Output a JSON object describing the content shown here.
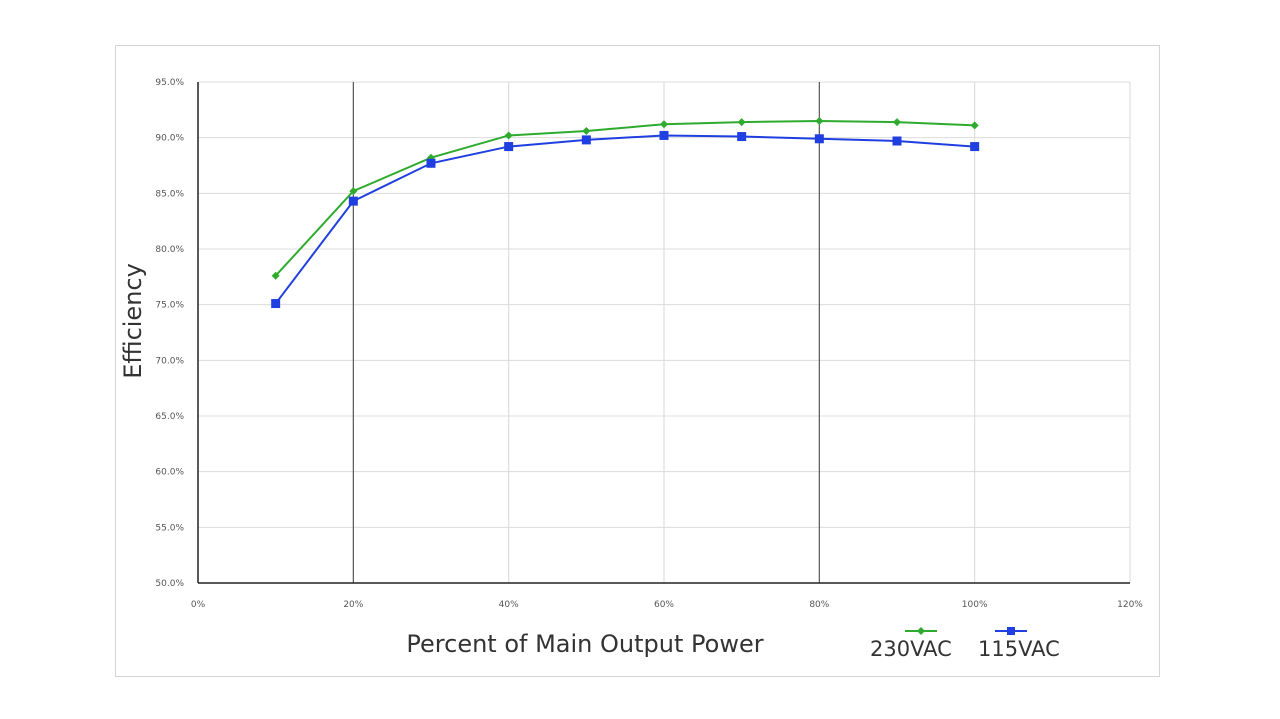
{
  "chart_data": {
    "type": "line",
    "xlabel": "Percent of Main Output Power",
    "ylabel": "Efficiency",
    "xlim": [
      0,
      120
    ],
    "ylim": [
      50,
      95
    ],
    "x_ticks": [
      0,
      20,
      40,
      60,
      80,
      100,
      120
    ],
    "x_tick_labels": [
      "0%",
      "20%",
      "40%",
      "60%",
      "80%",
      "100%",
      "120%"
    ],
    "y_ticks": [
      50,
      55,
      60,
      65,
      70,
      75,
      80,
      85,
      90,
      95
    ],
    "y_tick_labels": [
      "50.0%",
      "55.0%",
      "60.0%",
      "65.0%",
      "70.0%",
      "75.0%",
      "80.0%",
      "85.0%",
      "90.0%",
      "95.0%"
    ],
    "grid": true,
    "legend_position": "bottom-right",
    "x": [
      10,
      20,
      30,
      40,
      50,
      60,
      70,
      80,
      90,
      100
    ],
    "series": [
      {
        "name": "230VAC",
        "color": "#2eab2e",
        "marker": "diamond",
        "values": [
          77.6,
          85.2,
          88.2,
          90.2,
          90.6,
          91.2,
          91.4,
          91.5,
          91.4,
          91.1
        ]
      },
      {
        "name": "115VAC",
        "color": "#1f3fe0",
        "marker": "square",
        "values": [
          75.1,
          84.3,
          87.7,
          89.2,
          89.8,
          90.2,
          90.1,
          89.9,
          89.7,
          89.2
        ]
      }
    ]
  }
}
